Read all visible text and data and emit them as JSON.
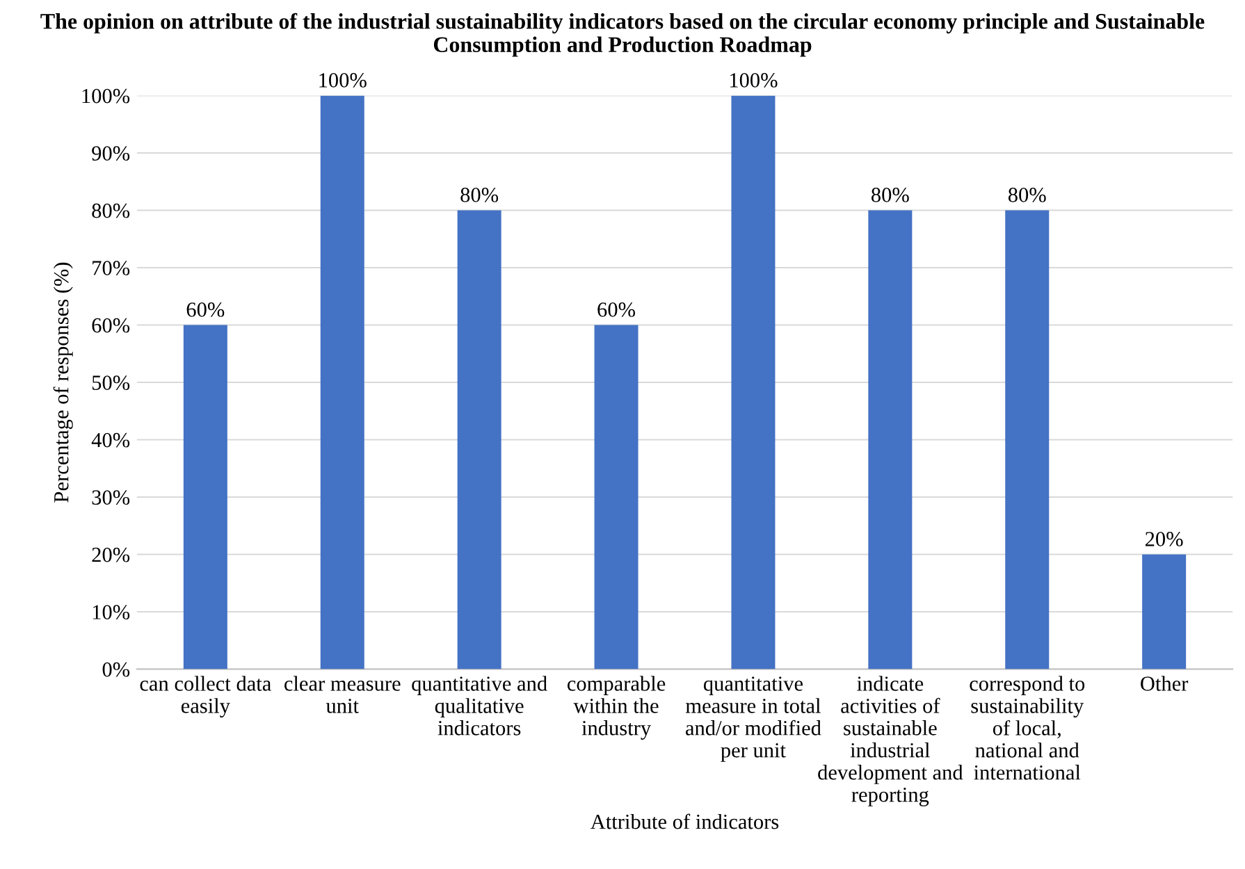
{
  "chart_data": {
    "type": "bar",
    "title": "The opinion on attribute of the industrial sustainability indicators based on the circular economy principle and Sustainable Consumption and Production Roadmap",
    "xlabel": "Attribute of indicators",
    "ylabel": "Percentage of responses (%)",
    "categories": [
      "can collect data easily",
      "clear measure unit",
      "quantitative and qualitative indicators",
      "comparable within the industry",
      "quantitative measure in total and/or modified per unit",
      "indicate activities of sustainable industrial development and reporting",
      "correspond to sustainability of local, national and international",
      "Other"
    ],
    "values": [
      60,
      100,
      80,
      60,
      100,
      80,
      80,
      20
    ],
    "value_labels": [
      "60%",
      "100%",
      "80%",
      "60%",
      "100%",
      "80%",
      "80%",
      "20%"
    ],
    "color": "#4472c4",
    "ylim": [
      0,
      100
    ],
    "yticks": [
      {
        "value": 0,
        "label": "0%"
      },
      {
        "value": 10,
        "label": "10%"
      },
      {
        "value": 20,
        "label": "20%"
      },
      {
        "value": 30,
        "label": "30%"
      },
      {
        "value": 40,
        "label": "40%"
      },
      {
        "value": 50,
        "label": "50%"
      },
      {
        "value": 60,
        "label": "60%"
      },
      {
        "value": 70,
        "label": "70%"
      },
      {
        "value": 80,
        "label": "80%"
      },
      {
        "value": 90,
        "label": "90%"
      },
      {
        "value": 100,
        "label": "100%"
      }
    ],
    "grid": "y",
    "legend": false
  }
}
